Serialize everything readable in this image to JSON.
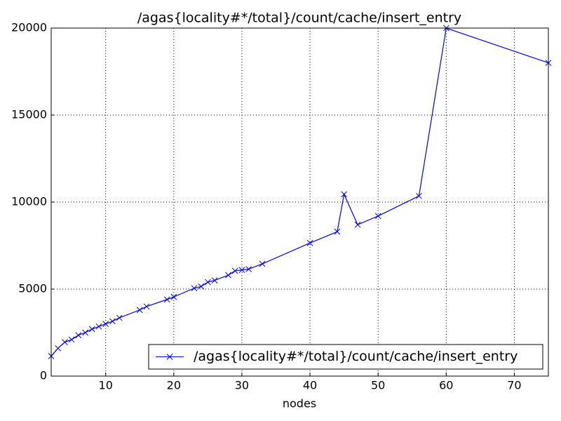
{
  "chart_data": {
    "type": "line",
    "title": "/agas{locality#*/total}/count/cache/insert_entry",
    "xlabel": "nodes",
    "x": [
      2,
      3,
      4,
      5,
      6,
      7,
      8,
      9,
      10,
      11,
      12,
      15,
      16,
      19,
      20,
      23,
      24,
      25,
      26,
      28,
      29,
      30,
      31,
      33,
      40,
      44,
      45,
      47,
      50,
      56,
      60,
      75
    ],
    "series": [
      {
        "name": "/agas{locality#*/total}/count/cache/insert_entry",
        "color": "#0000ff",
        "marker": "x",
        "values": [
          1150,
          1600,
          1950,
          2100,
          2350,
          2500,
          2700,
          2850,
          3000,
          3150,
          3350,
          3800,
          4000,
          4400,
          4550,
          5050,
          5150,
          5400,
          5500,
          5800,
          6050,
          6100,
          6150,
          6450,
          7650,
          8300,
          10450,
          8700,
          9200,
          10350,
          20000,
          18000
        ]
      }
    ],
    "xlim": [
      2,
      75
    ],
    "ylim": [
      0,
      20000
    ],
    "xticks": [
      10,
      20,
      30,
      40,
      50,
      60,
      70
    ],
    "yticks": [
      0,
      5000,
      10000,
      15000,
      20000
    ],
    "grid": true,
    "legend": "lower right"
  }
}
